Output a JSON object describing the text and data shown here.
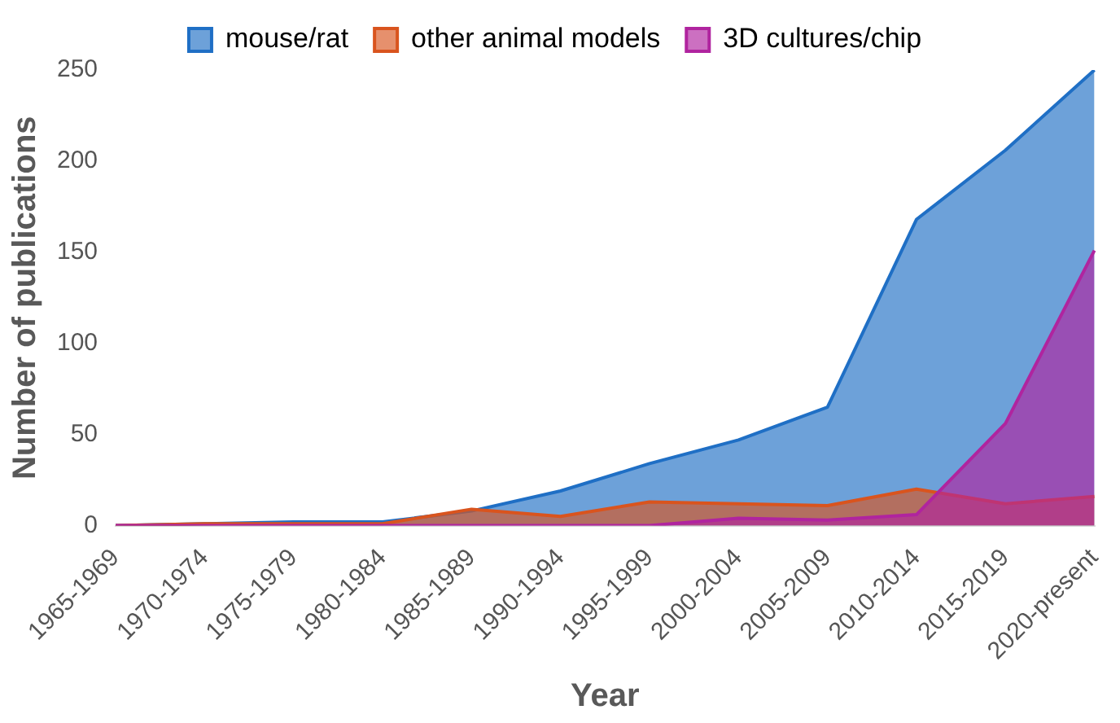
{
  "chart_data": {
    "type": "area",
    "xlabel": "Year",
    "ylabel": "Number of publications",
    "categories": [
      "1965-1969",
      "1970-1974",
      "1975-1979",
      "1980-1984",
      "1985-1989",
      "1990-1994",
      "1995-1999",
      "2000-2004",
      "2005-2009",
      "2010-2014",
      "2015-2019",
      "2020-present"
    ],
    "series": [
      {
        "name": "mouse/rat",
        "color": "#1f6fc5",
        "values": [
          0,
          1,
          2,
          2,
          8,
          19,
          34,
          47,
          65,
          168,
          206,
          250
        ]
      },
      {
        "name": "other animal models",
        "color": "#d9541e",
        "values": [
          0,
          1,
          1,
          1,
          9,
          5,
          13,
          12,
          11,
          20,
          12,
          16
        ]
      },
      {
        "name": "3D cultures/chip",
        "color": "#b0249f",
        "values": [
          0,
          0,
          0,
          0,
          0,
          0,
          0,
          4,
          3,
          6,
          56,
          151
        ]
      }
    ],
    "ylim": [
      0,
      250
    ],
    "yticks": [
      0,
      50,
      100,
      150,
      200,
      250
    ],
    "grid": false,
    "legend": "top"
  }
}
